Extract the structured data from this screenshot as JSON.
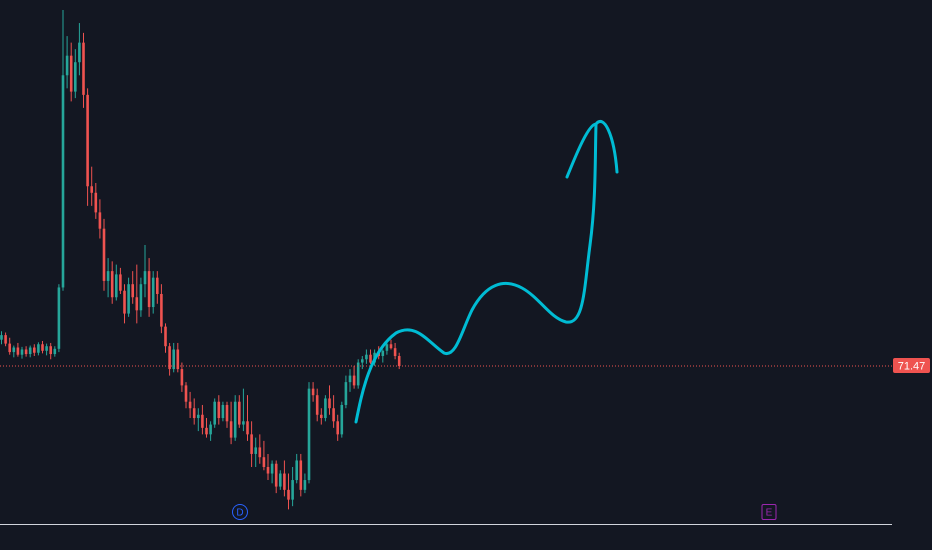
{
  "colors": {
    "background": "#131722",
    "up": "#26a69a",
    "down": "#ef5350",
    "price_line": "#ef5350",
    "drawing": "#00bcd4",
    "axis": "#d1d4dc",
    "dividend_marker": "#2962ff",
    "earnings_marker": "#9c27b0"
  },
  "last_price_label": "71.47",
  "markers": [
    {
      "label": "D",
      "name": "dividend"
    },
    {
      "label": "E",
      "name": "earnings"
    }
  ],
  "chart_data": {
    "type": "candlestick",
    "title": "",
    "xlabel": "",
    "ylabel": "",
    "last_price": 71.47,
    "ylim": [
      50,
      130
    ],
    "grid": false,
    "candles": [
      [
        75.5,
        76.8,
        74.8,
        76.2
      ],
      [
        76.2,
        76.6,
        74.5,
        74.9
      ],
      [
        74.9,
        75.8,
        73.2,
        73.6
      ],
      [
        73.6,
        74.6,
        72.8,
        74.3
      ],
      [
        74.3,
        75.0,
        72.9,
        73.2
      ],
      [
        73.2,
        74.4,
        72.6,
        74.0
      ],
      [
        74.0,
        74.5,
        72.9,
        73.3
      ],
      [
        73.3,
        74.6,
        72.8,
        74.3
      ],
      [
        74.3,
        74.8,
        73.0,
        73.5
      ],
      [
        73.5,
        75.1,
        73.1,
        74.8
      ],
      [
        74.8,
        75.3,
        73.4,
        73.8
      ],
      [
        73.8,
        74.9,
        73.1,
        74.5
      ],
      [
        74.5,
        75.0,
        72.5,
        73.3
      ],
      [
        73.3,
        74.5,
        72.9,
        74.1
      ],
      [
        74.1,
        84.0,
        73.6,
        83.5
      ],
      [
        83.5,
        126.0,
        83.0,
        116.0
      ],
      [
        116.0,
        122.0,
        114.0,
        119.0
      ],
      [
        119.0,
        121.0,
        112.0,
        113.5
      ],
      [
        113.5,
        120.0,
        112.5,
        118.0
      ],
      [
        118.0,
        124.0,
        116.0,
        121.0
      ],
      [
        121.0,
        122.5,
        111.0,
        113.0
      ],
      [
        113.0,
        114.0,
        96.0,
        99.0
      ],
      [
        99.0,
        102.0,
        96.0,
        98.0
      ],
      [
        98.0,
        99.5,
        94.0,
        95.0
      ],
      [
        95.0,
        97.0,
        91.0,
        92.5
      ],
      [
        92.5,
        94.0,
        83.0,
        84.5
      ],
      [
        84.5,
        88.0,
        82.0,
        86.0
      ],
      [
        86.0,
        87.5,
        81.0,
        82.0
      ],
      [
        82.0,
        87.0,
        81.5,
        85.5
      ],
      [
        85.5,
        86.5,
        82.5,
        83.0
      ],
      [
        83.0,
        84.0,
        78.0,
        79.5
      ],
      [
        79.5,
        85.0,
        79.0,
        84.0
      ],
      [
        84.0,
        86.0,
        81.0,
        82.0
      ],
      [
        82.0,
        87.0,
        78.0,
        80.0
      ],
      [
        80.0,
        85.0,
        79.0,
        84.0
      ],
      [
        84.0,
        90.0,
        82.0,
        86.0
      ],
      [
        86.0,
        88.0,
        79.0,
        80.5
      ],
      [
        80.5,
        86.0,
        79.5,
        85.0
      ],
      [
        85.0,
        86.0,
        81.0,
        82.5
      ],
      [
        82.5,
        84.0,
        76.5,
        77.5
      ],
      [
        77.5,
        78.0,
        73.5,
        74.5
      ],
      [
        74.5,
        75.0,
        70.0,
        71.0
      ],
      [
        71.0,
        75.0,
        70.5,
        74.0
      ],
      [
        74.0,
        75.0,
        70.5,
        71.0
      ],
      [
        71.0,
        72.0,
        67.5,
        68.5
      ],
      [
        68.5,
        69.0,
        65.0,
        66.0
      ],
      [
        66.0,
        67.5,
        63.5,
        65.0
      ],
      [
        65.0,
        66.5,
        62.5,
        63.5
      ],
      [
        63.5,
        65.0,
        61.5,
        64.0
      ],
      [
        64.0,
        65.5,
        61.0,
        62.0
      ],
      [
        62.0,
        63.5,
        60.5,
        61.0
      ],
      [
        61.0,
        63.0,
        60.0,
        62.5
      ],
      [
        62.5,
        66.5,
        62.0,
        66.0
      ],
      [
        66.0,
        67.0,
        62.5,
        63.5
      ],
      [
        63.5,
        66.0,
        63.0,
        65.5
      ],
      [
        65.5,
        66.0,
        62.0,
        63.0
      ],
      [
        63.0,
        66.0,
        59.5,
        60.5
      ],
      [
        60.5,
        67.0,
        60.0,
        66.0
      ],
      [
        66.0,
        67.0,
        62.0,
        62.5
      ],
      [
        62.5,
        68.0,
        61.5,
        63.0
      ],
      [
        63.0,
        67.0,
        60.0,
        61.0
      ],
      [
        61.0,
        63.0,
        56.0,
        58.0
      ],
      [
        58.0,
        60.5,
        56.0,
        59.0
      ],
      [
        59.0,
        61.0,
        56.5,
        57.5
      ],
      [
        57.5,
        60.0,
        55.5,
        56.0
      ],
      [
        56.0,
        58.0,
        54.0,
        55.0
      ],
      [
        55.0,
        57.0,
        53.5,
        56.5
      ],
      [
        56.5,
        57.0,
        52.0,
        53.0
      ],
      [
        53.0,
        55.5,
        52.5,
        55.0
      ],
      [
        55.0,
        57.0,
        51.5,
        52.5
      ],
      [
        52.5,
        55.0,
        49.5,
        51.0
      ],
      [
        51.0,
        56.0,
        50.0,
        54.0
      ],
      [
        54.0,
        58.0,
        53.5,
        57.0
      ],
      [
        57.0,
        58.0,
        51.5,
        52.5
      ],
      [
        52.5,
        55.0,
        52.0,
        54.0
      ],
      [
        54.0,
        69.0,
        53.5,
        68.0
      ],
      [
        68.0,
        69.0,
        66.0,
        67.0
      ],
      [
        67.0,
        68.0,
        63.0,
        64.0
      ],
      [
        64.0,
        65.0,
        62.5,
        63.5
      ],
      [
        63.5,
        67.0,
        63.0,
        66.5
      ],
      [
        66.5,
        68.5,
        64.0,
        65.0
      ],
      [
        65.0,
        67.0,
        62.0,
        63.0
      ],
      [
        63.0,
        64.0,
        60.0,
        61.0
      ],
      [
        61.0,
        66.0,
        60.5,
        65.5
      ],
      [
        65.5,
        70.0,
        65.0,
        69.0
      ],
      [
        69.0,
        71.0,
        67.5,
        70.0
      ],
      [
        70.0,
        71.5,
        68.0,
        68.5
      ],
      [
        68.5,
        72.5,
        68.0,
        72.0
      ],
      [
        72.0,
        73.0,
        71.0,
        72.5
      ],
      [
        72.5,
        74.0,
        71.8,
        73.2
      ],
      [
        73.2,
        74.0,
        71.8,
        72.0
      ],
      [
        72.0,
        74.0,
        71.5,
        73.5
      ],
      [
        73.5,
        74.5,
        72.5,
        73.0
      ],
      [
        73.0,
        74.0,
        72.0,
        73.8
      ],
      [
        73.8,
        75.0,
        73.2,
        74.8
      ],
      [
        74.8,
        75.5,
        74.0,
        74.2
      ],
      [
        74.2,
        75.0,
        72.5,
        73.0
      ],
      [
        73.0,
        73.5,
        71.0,
        71.47
      ]
    ]
  }
}
